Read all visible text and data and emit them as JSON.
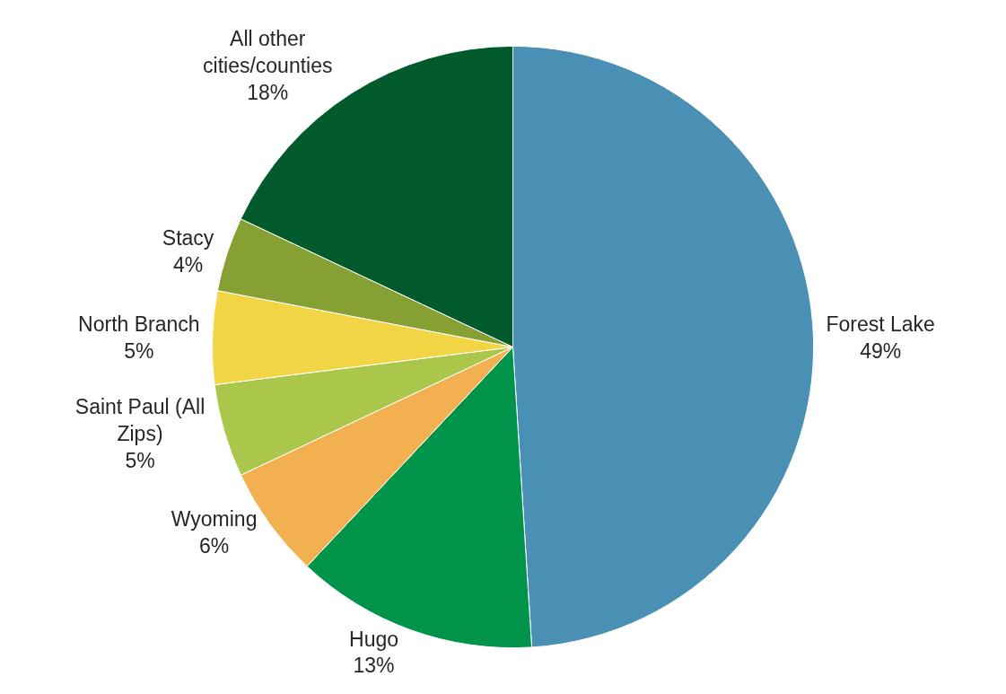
{
  "chart_data": {
    "type": "pie",
    "categories": [
      "Forest Lake",
      "Hugo",
      "Wyoming",
      "Saint Paul (All Zips)",
      "North Branch",
      "Stacy",
      "All other cities/counties"
    ],
    "values": [
      49,
      13,
      6,
      5,
      5,
      4,
      18
    ],
    "value_labels": [
      "49%",
      "13%",
      "6%",
      "5%",
      "5%",
      "4%",
      "18%"
    ],
    "colors": [
      "#4a90b5",
      "#00934a",
      "#f2b051",
      "#aac74b",
      "#f2d545",
      "#86a033",
      "#005a2b"
    ],
    "legend": false
  }
}
